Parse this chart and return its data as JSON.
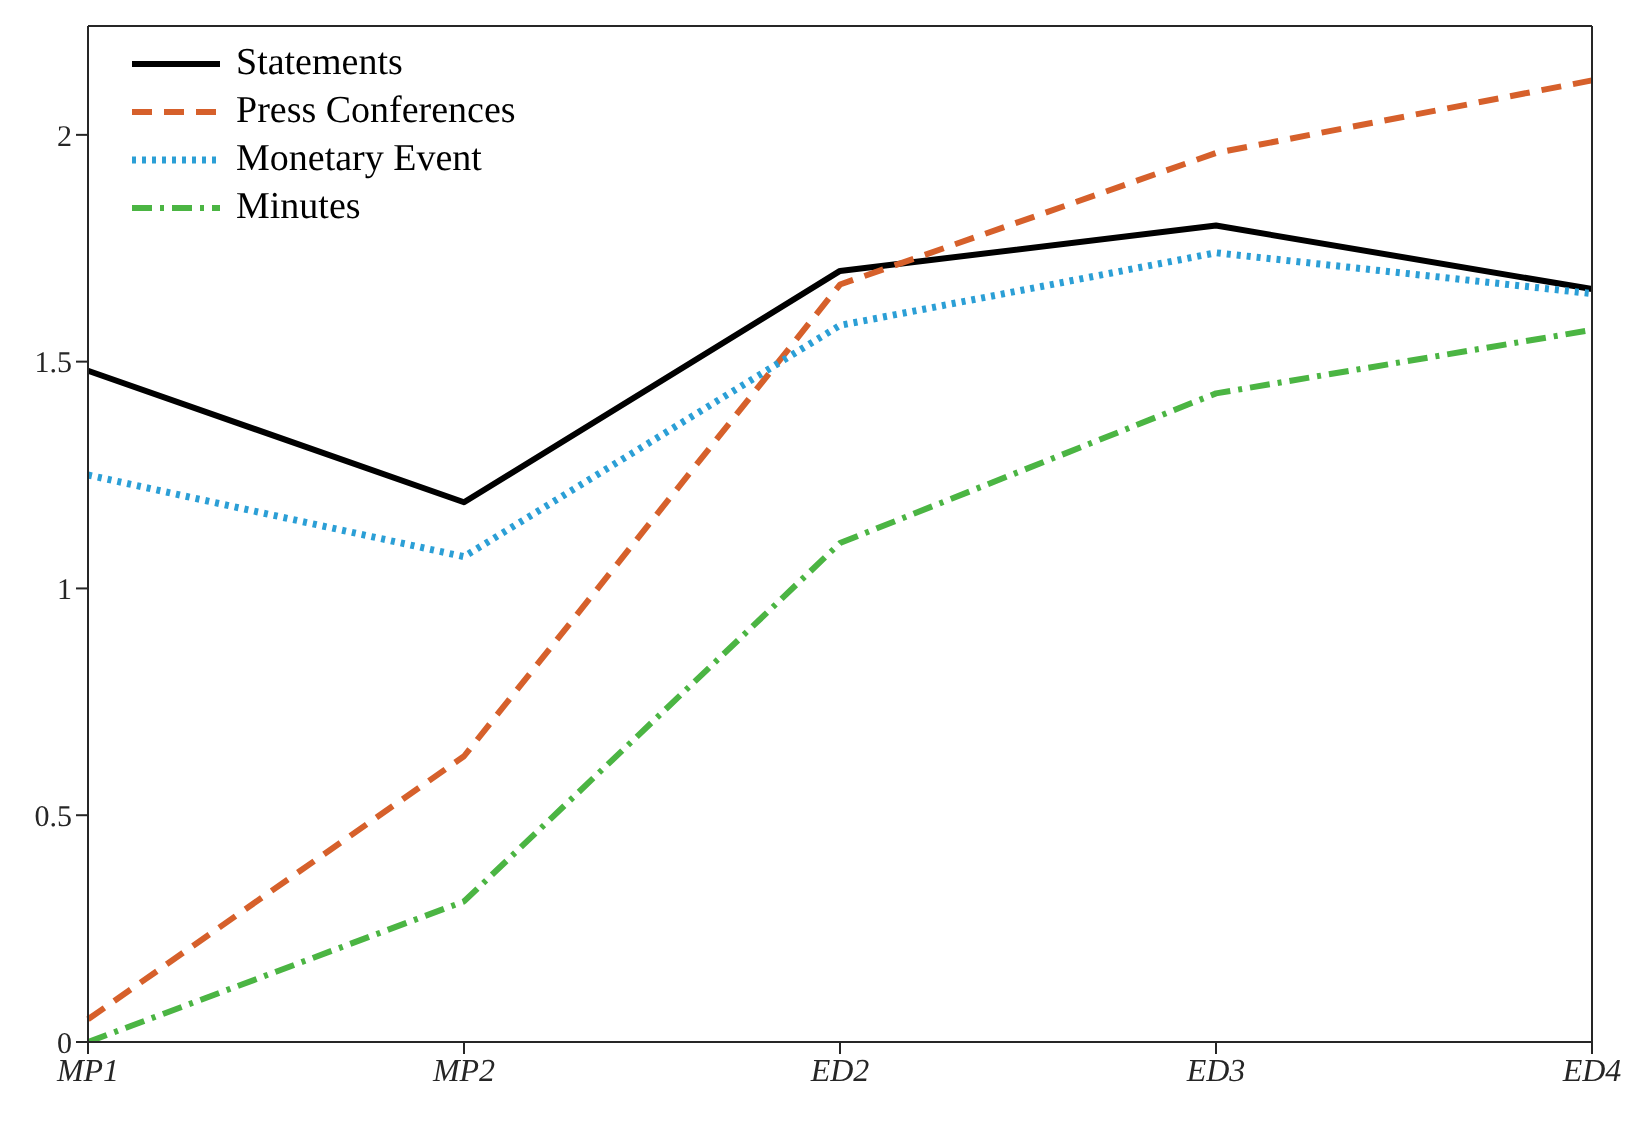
{
  "chart_data": {
    "type": "line",
    "categories": [
      "MP1",
      "MP2",
      "ED2",
      "ED3",
      "ED4"
    ],
    "series": [
      {
        "name": "Statements",
        "color": "#000000",
        "line_style": "solid",
        "values": [
          1.48,
          1.19,
          1.7,
          1.8,
          1.66
        ]
      },
      {
        "name": "Press Conferences",
        "color": "#d6602b",
        "line_style": "dashed",
        "values": [
          0.05,
          0.63,
          1.67,
          1.96,
          2.12
        ]
      },
      {
        "name": "Monetary Event",
        "color": "#2b9fd6",
        "line_style": "dotted",
        "values": [
          1.25,
          1.07,
          1.58,
          1.74,
          1.65
        ]
      },
      {
        "name": "Minutes",
        "color": "#4bb543",
        "line_style": "dashdot",
        "values": [
          0,
          0.31,
          1.1,
          1.43,
          1.57
        ]
      }
    ],
    "ylim": [
      0,
      2.24
    ],
    "yticks": [
      0,
      0.5,
      1,
      1.5,
      2
    ],
    "grid": false,
    "legend": "top left",
    "marker": "none"
  }
}
